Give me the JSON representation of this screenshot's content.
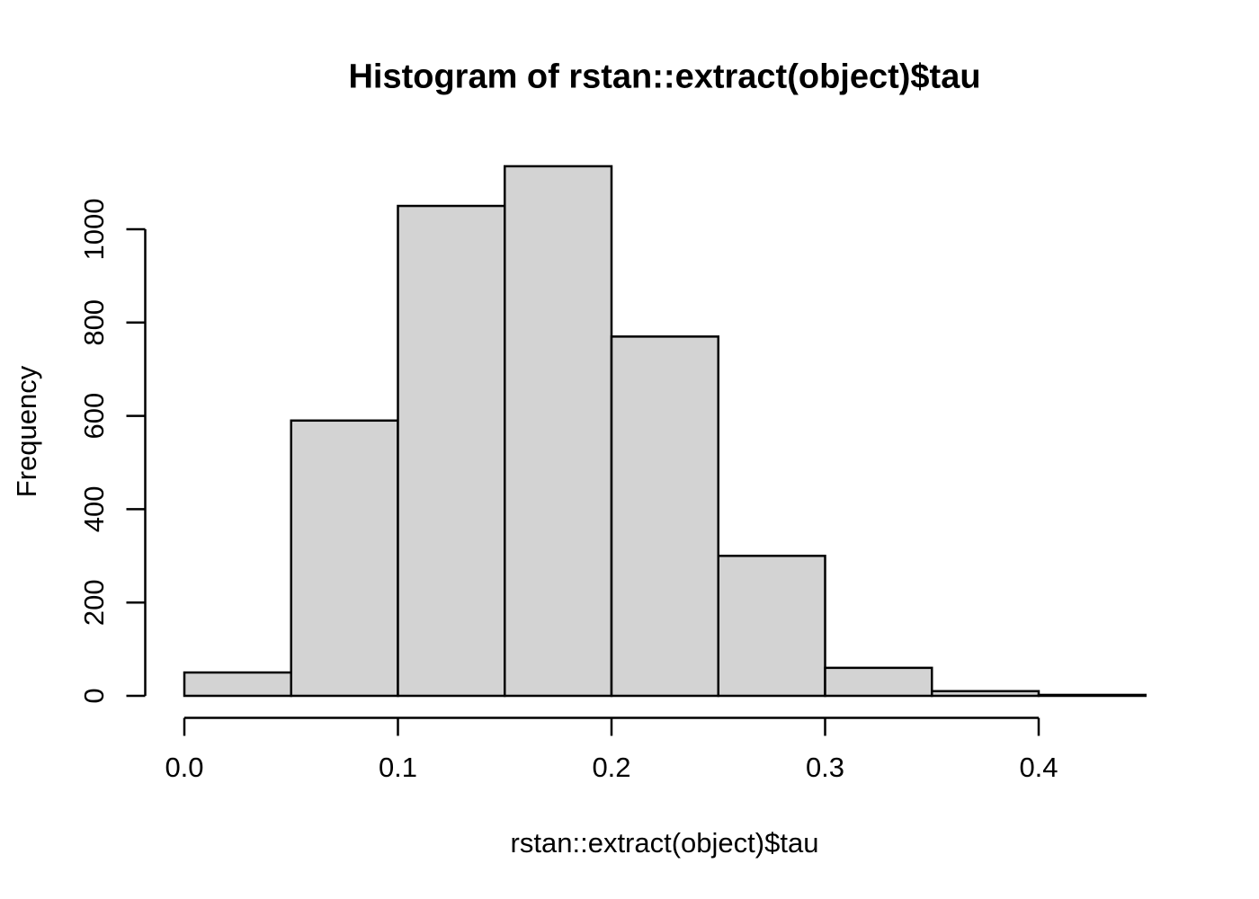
{
  "chart_data": {
    "type": "bar",
    "chart_kind": "histogram",
    "title": "Histogram of rstan::extract(object)$tau",
    "xlabel": "rstan::extract(object)$tau",
    "ylabel": "Frequency",
    "bin_edges": [
      0.0,
      0.05,
      0.1,
      0.15,
      0.2,
      0.25,
      0.3,
      0.35,
      0.4,
      0.45
    ],
    "counts": [
      50,
      590,
      1050,
      1135,
      770,
      300,
      60,
      10,
      2
    ],
    "x_ticks": {
      "values": [
        0.0,
        0.1,
        0.2,
        0.3,
        0.4
      ],
      "labels": [
        "0.0",
        "0.1",
        "0.2",
        "0.3",
        "0.4"
      ]
    },
    "y_ticks": {
      "values": [
        0,
        200,
        400,
        600,
        800,
        1000
      ],
      "labels": [
        "0",
        "200",
        "400",
        "600",
        "800",
        "1000"
      ]
    },
    "xlim": [
      0,
      0.45
    ],
    "ylim": [
      0,
      1140
    ],
    "grid": false,
    "legend": null,
    "colors": {
      "bar_fill": "#d3d3d3",
      "bar_stroke": "#000000",
      "axis": "#000000",
      "text": "#000000",
      "background": "#ffffff"
    }
  }
}
